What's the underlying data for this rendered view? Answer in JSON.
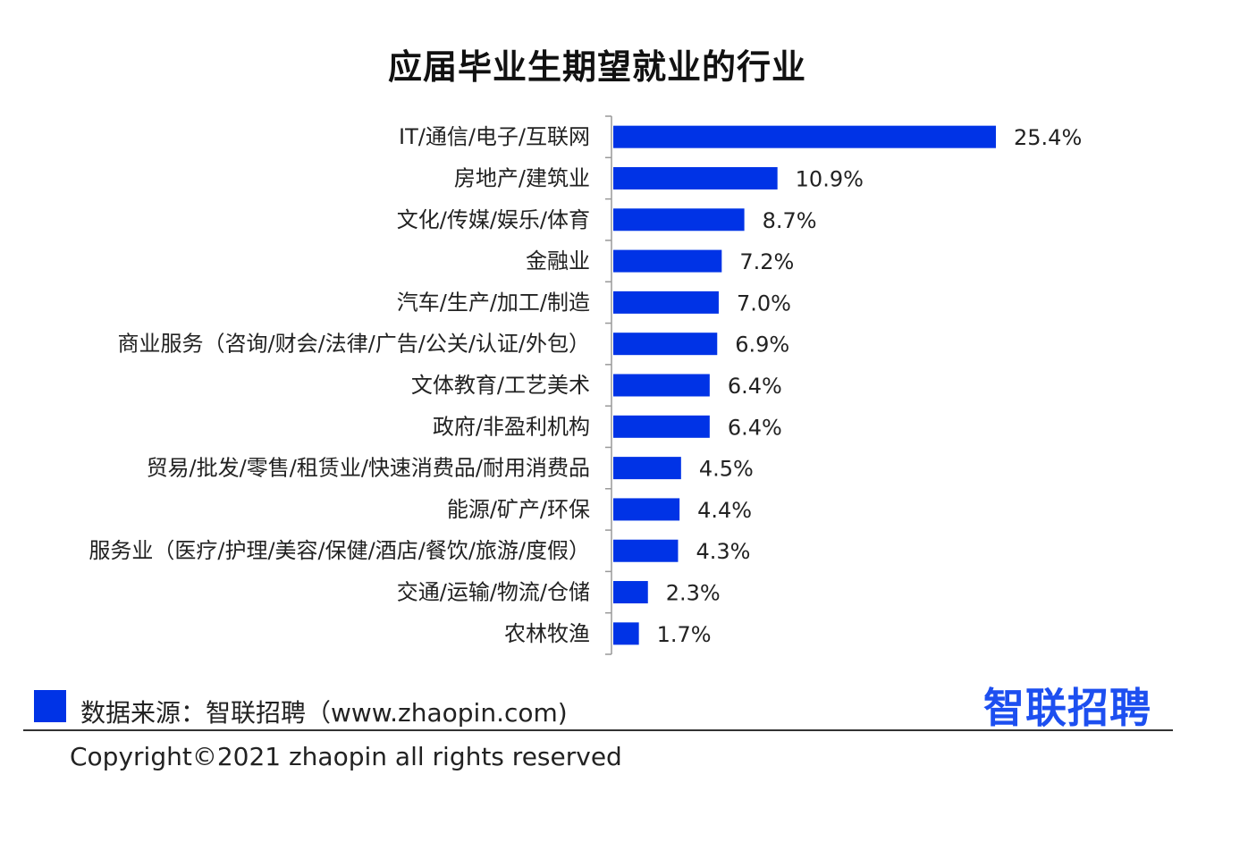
{
  "page": {
    "source_text": "数据来源：智联招聘（www.zhaopin.com)",
    "logo_text": "智联招聘",
    "copyright": "Copyright©2021 zhaopin all rights reserved"
  },
  "colors": {
    "bar": "#0033e6",
    "logo": "#1d4ff0",
    "axis": "#999999"
  },
  "chart_data": {
    "type": "bar",
    "orientation": "horizontal",
    "title": "应届毕业生期望就业的行业",
    "xlabel": "",
    "ylabel": "",
    "xlim": [
      0,
      25.4
    ],
    "grid": false,
    "legend": "bottom-left",
    "value_suffix": "%",
    "categories": [
      "IT/通信/电子/互联网",
      "房地产/建筑业",
      "文化/传媒/娱乐/体育",
      "金融业",
      "汽车/生产/加工/制造",
      "商业服务（咨询/财会/法律/广告/公关/认证/外包）",
      "文体教育/工艺美术",
      "政府/非盈利机构",
      "贸易/批发/零售/租赁业/快速消费品/耐用消费品",
      "能源/矿产/环保",
      "服务业（医疗/护理/美容/保健/酒店/餐饮/旅游/度假）",
      "交通/运输/物流/仓储",
      "农林牧渔"
    ],
    "values": [
      25.4,
      10.9,
      8.7,
      7.2,
      7.0,
      6.9,
      6.4,
      6.4,
      4.5,
      4.4,
      4.3,
      2.3,
      1.7
    ],
    "value_labels": [
      "25.4%",
      "10.9%",
      "8.7%",
      "7.2%",
      "7.0%",
      "6.9%",
      "6.4%",
      "6.4%",
      "4.5%",
      "4.4%",
      "4.3%",
      "2.3%",
      "1.7%"
    ]
  }
}
